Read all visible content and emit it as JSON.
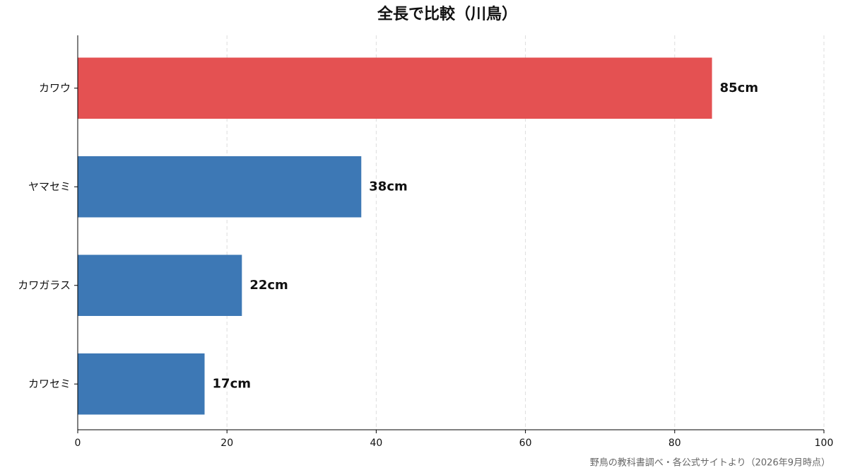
{
  "chart_data": {
    "type": "barh",
    "title": "全長で比較（川鳥）",
    "categories": [
      "カワウ",
      "ヤマセミ",
      "カワガラス",
      "カワセミ"
    ],
    "values": [
      85,
      38,
      22,
      17
    ],
    "value_labels": [
      "85cm",
      "38cm",
      "22cm",
      "17cm"
    ],
    "colors": [
      "#e45152",
      "#3d78b5",
      "#3d78b5",
      "#3d78b5"
    ],
    "xlim": [
      0,
      100
    ],
    "xticks": [
      0,
      20,
      40,
      60,
      80,
      100
    ],
    "grid": true,
    "source": "野鳥の教科書調べ・各公式サイトより（2026年9月時点）"
  }
}
